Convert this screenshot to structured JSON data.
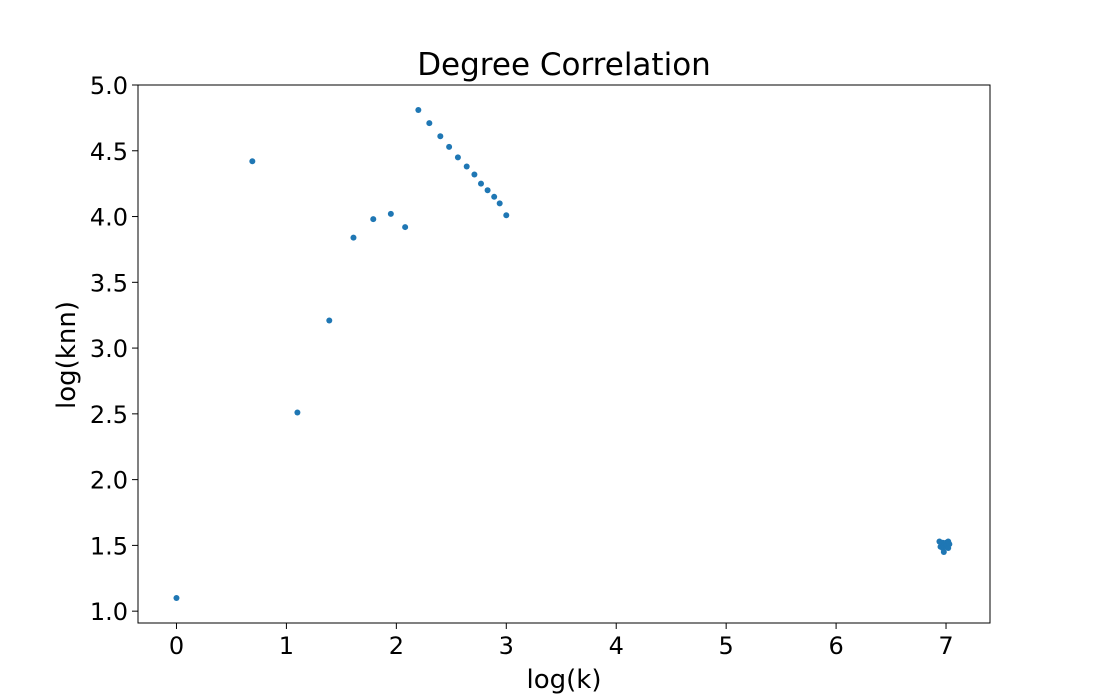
{
  "chart_data": {
    "type": "scatter",
    "title": "Degree Correlation",
    "xlabel": "log(k)",
    "ylabel": "log(knn)",
    "xlim": [
      -0.35,
      7.4
    ],
    "ylim": [
      0.91,
      5.0
    ],
    "xticks": [
      0,
      1,
      2,
      3,
      4,
      5,
      6,
      7
    ],
    "xtick_labels": [
      "0",
      "1",
      "2",
      "3",
      "4",
      "5",
      "6",
      "7"
    ],
    "yticks": [
      1.0,
      1.5,
      2.0,
      2.5,
      3.0,
      3.5,
      4.0,
      4.5,
      5.0
    ],
    "ytick_labels": [
      "1.0",
      "1.5",
      "2.0",
      "2.5",
      "3.0",
      "3.5",
      "4.0",
      "4.5",
      "5.0"
    ],
    "grid": false,
    "color": "#1f77b4",
    "series": [
      {
        "points": [
          {
            "x": 0.0,
            "y": 1.1
          },
          {
            "x": 0.69,
            "y": 4.42
          },
          {
            "x": 1.1,
            "y": 2.51
          },
          {
            "x": 1.39,
            "y": 3.21
          },
          {
            "x": 1.61,
            "y": 3.84
          },
          {
            "x": 1.79,
            "y": 3.98
          },
          {
            "x": 1.95,
            "y": 4.02
          },
          {
            "x": 2.08,
            "y": 3.92
          },
          {
            "x": 2.2,
            "y": 4.81
          },
          {
            "x": 2.3,
            "y": 4.71
          },
          {
            "x": 2.4,
            "y": 4.61
          },
          {
            "x": 2.48,
            "y": 4.53
          },
          {
            "x": 2.56,
            "y": 4.45
          },
          {
            "x": 2.64,
            "y": 4.38
          },
          {
            "x": 2.71,
            "y": 4.32
          },
          {
            "x": 2.77,
            "y": 4.25
          },
          {
            "x": 2.83,
            "y": 4.2
          },
          {
            "x": 2.89,
            "y": 4.15
          },
          {
            "x": 2.94,
            "y": 4.1
          },
          {
            "x": 3.0,
            "y": 4.01
          },
          {
            "x": 6.94,
            "y": 1.53
          },
          {
            "x": 6.95,
            "y": 1.49
          },
          {
            "x": 6.96,
            "y": 1.51
          },
          {
            "x": 6.97,
            "y": 1.48
          },
          {
            "x": 6.97,
            "y": 1.52
          },
          {
            "x": 6.98,
            "y": 1.5
          },
          {
            "x": 6.98,
            "y": 1.45
          },
          {
            "x": 6.99,
            "y": 1.51
          },
          {
            "x": 7.0,
            "y": 1.49
          },
          {
            "x": 7.0,
            "y": 1.52
          },
          {
            "x": 7.01,
            "y": 1.5
          },
          {
            "x": 7.02,
            "y": 1.53
          },
          {
            "x": 7.02,
            "y": 1.48
          },
          {
            "x": 7.03,
            "y": 1.51
          }
        ]
      }
    ]
  }
}
